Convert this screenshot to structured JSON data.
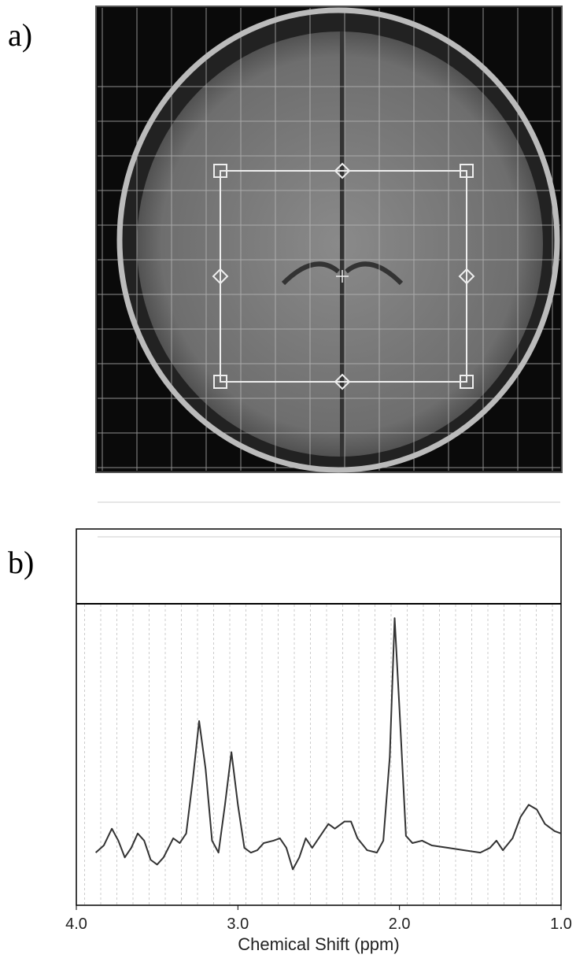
{
  "panels": [
    "a)",
    "b)"
  ],
  "chart_data": {
    "type": "line",
    "xlabel": "Chemical Shift (ppm)",
    "xlim": [
      4.0,
      1.0
    ],
    "xticks": [
      {
        "value": 4,
        "label": "4.0"
      },
      {
        "value": 3,
        "label": "3.0"
      },
      {
        "value": 2,
        "label": "2.0"
      },
      {
        "value": 1,
        "label": "1.0"
      }
    ],
    "ylim": [
      -0.22,
      1.04
    ],
    "x": [
      3.88,
      3.83,
      3.78,
      3.74,
      3.7,
      3.66,
      3.62,
      3.58,
      3.54,
      3.5,
      3.46,
      3.4,
      3.36,
      3.32,
      3.28,
      3.24,
      3.2,
      3.16,
      3.12,
      3.08,
      3.04,
      3.0,
      2.96,
      2.92,
      2.88,
      2.84,
      2.78,
      2.74,
      2.7,
      2.66,
      2.62,
      2.58,
      2.54,
      2.48,
      2.44,
      2.4,
      2.34,
      2.3,
      2.26,
      2.2,
      2.14,
      2.1,
      2.06,
      2.03,
      2.0,
      1.96,
      1.92,
      1.86,
      1.8,
      1.7,
      1.6,
      1.5,
      1.44,
      1.4,
      1.36,
      1.3,
      1.25,
      1.2,
      1.15,
      1.1,
      1.04,
      1.0
    ],
    "series": [
      {
        "color": "#333333",
        "values": [
          0.0,
          0.03,
          0.1,
          0.05,
          -0.02,
          0.02,
          0.08,
          0.05,
          -0.03,
          -0.05,
          -0.02,
          0.06,
          0.04,
          0.08,
          0.3,
          0.55,
          0.35,
          0.05,
          0.0,
          0.2,
          0.42,
          0.2,
          0.02,
          0.0,
          0.01,
          0.04,
          0.05,
          0.06,
          0.02,
          -0.07,
          -0.02,
          0.06,
          0.02,
          0.08,
          0.12,
          0.1,
          0.13,
          0.13,
          0.06,
          0.01,
          0.0,
          0.05,
          0.4,
          0.98,
          0.6,
          0.07,
          0.04,
          0.05,
          0.03,
          0.02,
          0.01,
          0.0,
          0.02,
          0.05,
          0.01,
          0.06,
          0.15,
          0.2,
          0.18,
          0.12,
          0.09,
          0.08
        ]
      }
    ]
  }
}
